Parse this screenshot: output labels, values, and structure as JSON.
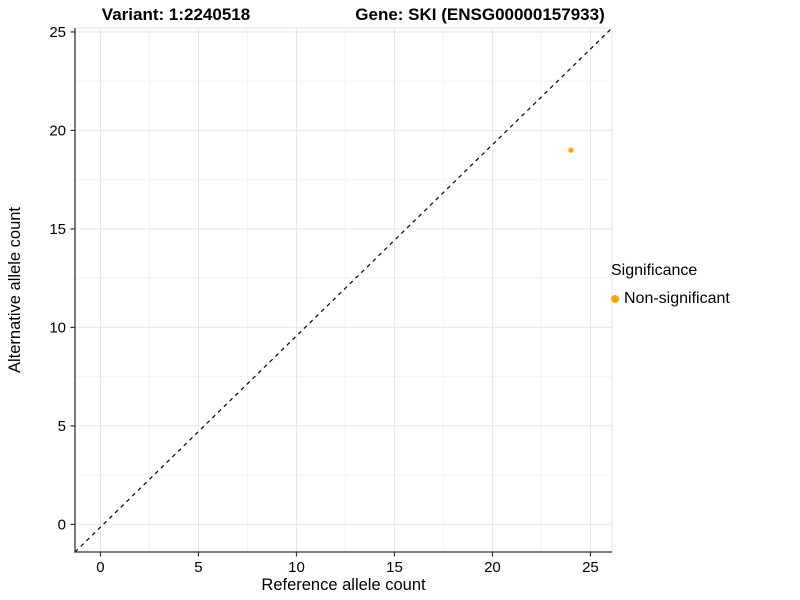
{
  "titles": {
    "variant": "Variant: 1:2240518",
    "gene": "Gene: SKI (ENSG00000157933)"
  },
  "legend": {
    "title": "Significance",
    "items": [
      {
        "label": "Non-significant",
        "color": "#FFA500"
      }
    ]
  },
  "chart_data": {
    "type": "scatter",
    "title": "Variant: 1:2240518  /  Gene: SKI (ENSG00000157933)",
    "xlabel": "Reference allele count",
    "ylabel": "Alternative allele count",
    "xlim": [
      -1.3,
      26.1
    ],
    "ylim": [
      -1.4,
      25.2
    ],
    "xticks": [
      0,
      5,
      10,
      15,
      20,
      25
    ],
    "yticks": [
      0,
      5,
      10,
      15,
      20,
      25
    ],
    "grid": "major+minor",
    "legend_position": "right",
    "reference_line": {
      "type": "identity",
      "style": "dashed",
      "color": "#000000"
    },
    "series": [
      {
        "name": "Non-significant",
        "color": "#FFA500",
        "point_radius": 2.6,
        "points": [
          [
            24,
            19
          ]
        ]
      }
    ]
  },
  "style": {
    "panel_border": "#E4E4E4",
    "grid_major": "#E6E6E6",
    "grid_minor": "#F3F3F3",
    "axis_line": "#333333",
    "tick_color": "#333333",
    "text_color": "#000000"
  }
}
